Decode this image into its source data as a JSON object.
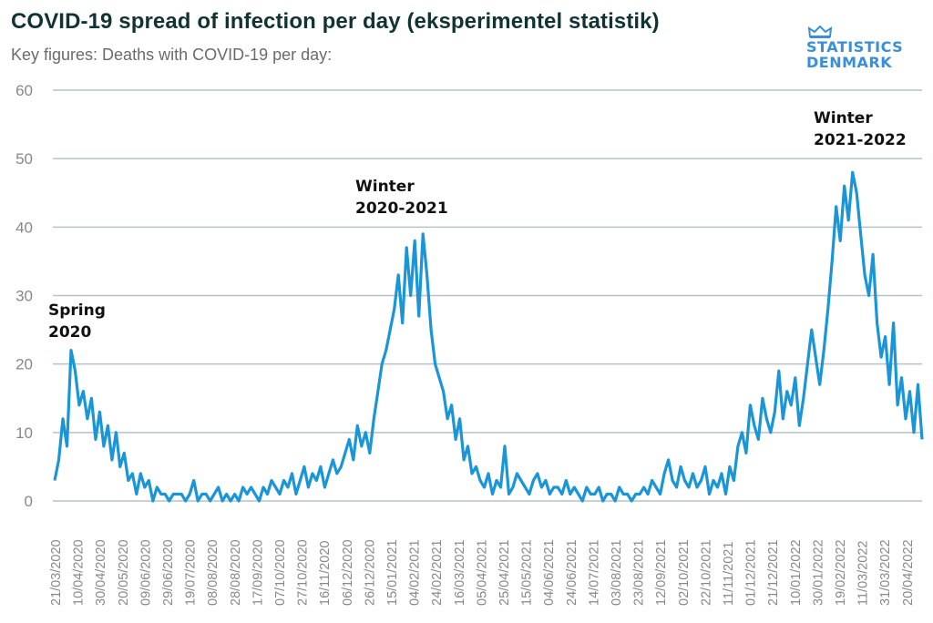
{
  "header": {
    "title": "COVID-19 spread of infection per day (eksperimentel statistik)",
    "subtitle": "Key figures: Deaths with COVID-19 per day:"
  },
  "logo": {
    "icon": "crown-icon",
    "line1": "STATISTICS",
    "line2": "DENMARK",
    "color": "#3a8fd8"
  },
  "chart_data": {
    "type": "line",
    "title": "COVID-19 spread of infection per day (eksperimentel statistik)",
    "subtitle": "Key figures: Deaths with COVID-19 per day:",
    "xlabel": "",
    "ylabel": "",
    "ylim": [
      0,
      60
    ],
    "yticks": [
      0,
      10,
      20,
      30,
      40,
      50,
      60
    ],
    "grid": true,
    "legend": "none",
    "line_color": "#1a96d8",
    "x_start": "21/03/2020",
    "x_step_days": 4,
    "xtick_labels": [
      "21/03/2020",
      "10/04/2020",
      "30/04/2020",
      "20/05/2020",
      "09/06/2020",
      "29/06/2020",
      "19/07/2020",
      "08/08/2020",
      "28/08/2020",
      "17/09/2020",
      "07/10/2020",
      "27/10/2020",
      "16/11/2020",
      "06/12/2020",
      "26/12/2020",
      "15/01/2021",
      "04/02/2021",
      "24/02/2021",
      "16/03/2021",
      "05/04/2021",
      "25/04/2021",
      "15/05/2021",
      "04/06/2021",
      "24/06/2021",
      "14/07/2021",
      "03/08/2021",
      "23/08/2021",
      "12/09/2021",
      "02/10/2021",
      "22/10/2021",
      "11/11/2021",
      "01/12/2021",
      "21/12/2021",
      "10/01/2022",
      "30/01/2022",
      "19/02/2022",
      "11/03/2022",
      "31/03/2022",
      "20/04/2022"
    ],
    "annotations": [
      {
        "lines": [
          "Spring",
          "2020"
        ],
        "date_index": 0
      },
      {
        "lines": [
          "Winter",
          "2020-2021"
        ],
        "date_index": 15
      },
      {
        "lines": [
          "Winter",
          "2021-2022"
        ],
        "date_index": 36
      }
    ],
    "series": [
      {
        "name": "Deaths with COVID-19 per day",
        "values": [
          3,
          6,
          12,
          8,
          22,
          19,
          14,
          16,
          12,
          15,
          9,
          13,
          8,
          11,
          6,
          10,
          5,
          7,
          3,
          4,
          1,
          4,
          2,
          3,
          0,
          2,
          1,
          1,
          0,
          1,
          1,
          1,
          0,
          1,
          3,
          0,
          1,
          1,
          0,
          1,
          2,
          0,
          1,
          0,
          1,
          0,
          2,
          1,
          2,
          1,
          0,
          2,
          1,
          3,
          2,
          1,
          3,
          2,
          4,
          1,
          3,
          5,
          2,
          4,
          3,
          5,
          2,
          4,
          6,
          4,
          5,
          7,
          9,
          6,
          11,
          8,
          10,
          7,
          12,
          16,
          20,
          22,
          25,
          28,
          33,
          26,
          37,
          30,
          38,
          27,
          39,
          33,
          25,
          20,
          18,
          16,
          12,
          14,
          9,
          12,
          6,
          8,
          4,
          5,
          3,
          2,
          4,
          1,
          3,
          2,
          8,
          1,
          2,
          4,
          3,
          2,
          1,
          3,
          4,
          2,
          3,
          1,
          2,
          2,
          1,
          3,
          1,
          2,
          1,
          0,
          2,
          1,
          1,
          2,
          0,
          1,
          1,
          0,
          2,
          1,
          1,
          0,
          1,
          1,
          2,
          1,
          3,
          2,
          1,
          4,
          6,
          3,
          2,
          5,
          3,
          2,
          4,
          2,
          3,
          5,
          1,
          3,
          2,
          4,
          1,
          5,
          3,
          8,
          10,
          7,
          14,
          11,
          9,
          15,
          12,
          10,
          13,
          19,
          12,
          16,
          14,
          18,
          11,
          15,
          20,
          25,
          21,
          17,
          22,
          28,
          35,
          43,
          38,
          46,
          41,
          48,
          45,
          39,
          33,
          30,
          36,
          26,
          21,
          24,
          17,
          26,
          14,
          18,
          12,
          16,
          10,
          17,
          9
        ]
      }
    ]
  }
}
